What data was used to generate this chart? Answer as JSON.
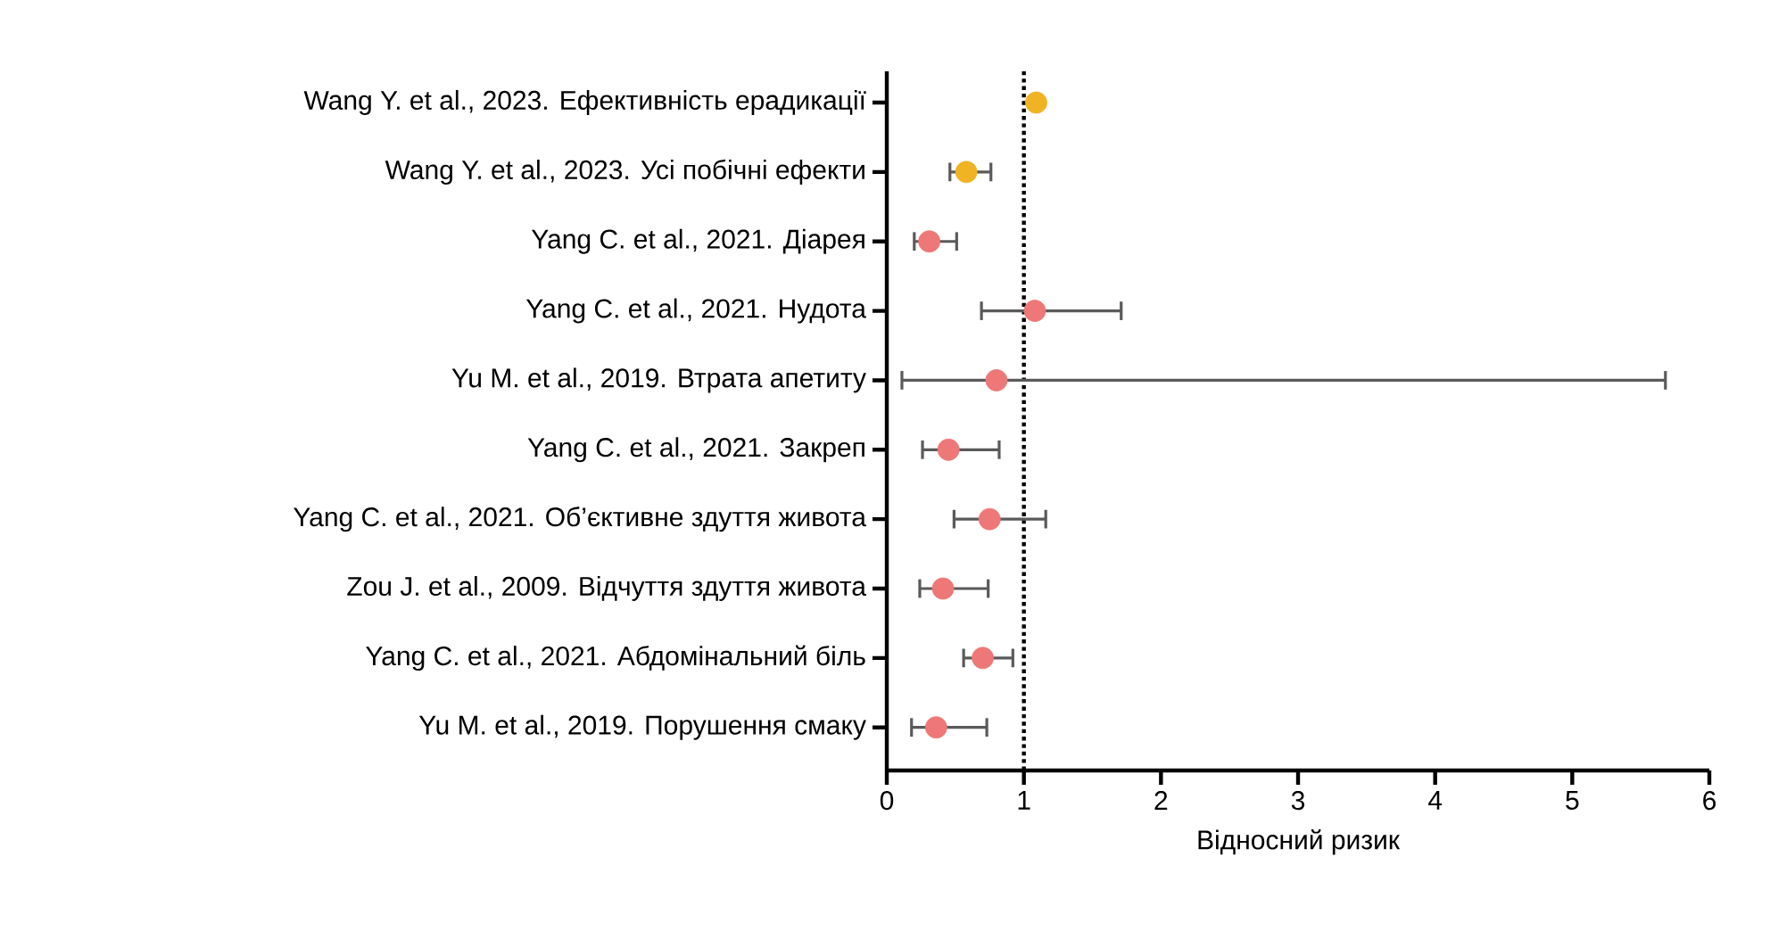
{
  "chart_data": {
    "type": "scatter",
    "orientation": "horizontal",
    "categories": [
      "Wang Y. et al., 2023. Ефективність ерадикації",
      "Wang Y. et al., 2023. Усі побічні ефекти",
      "Yang C. et al., 2021. Діарея",
      "Yang C. et al., 2021. Нудота",
      "Yu M. et al., 2019. Втрата апетиту",
      "Yang C. et al., 2021. Закреп",
      "Yang C. et al., 2021. Об’єктивне здуття живота",
      "Zou J. et al., 2009. Відчуття здуття живота",
      "Yang C. et al., 2021. Абдомінальний біль",
      "Yu M. et al., 2019. Порушення смаку"
    ],
    "values": [
      1.09,
      0.58,
      0.31,
      1.08,
      0.8,
      0.45,
      0.75,
      0.41,
      0.7,
      0.36
    ],
    "errors": [
      null,
      [
        0.45,
        0.77
      ],
      [
        0.19,
        0.52
      ],
      [
        0.68,
        1.72
      ],
      [
        0.1,
        5.69
      ],
      [
        0.25,
        0.83
      ],
      [
        0.48,
        1.17
      ],
      [
        0.23,
        0.75
      ],
      [
        0.55,
        0.93
      ],
      [
        0.17,
        0.74
      ]
    ],
    "colors": [
      "#f0b323",
      "#f0b323",
      "#ee7777",
      "#ee7777",
      "#ee7777",
      "#ee7777",
      "#ee7777",
      "#ee7777",
      "#ee7777",
      "#ee7777"
    ],
    "marker": "circle",
    "xlim": [
      0,
      6
    ],
    "xticks": [
      0,
      1,
      2,
      3,
      4,
      5,
      6
    ],
    "xlabel": "Відносний ризик",
    "ref_lines": [
      {
        "axis": "x",
        "value": 1,
        "line_style": "dotted",
        "color": "#000000"
      }
    ],
    "grid": false
  }
}
